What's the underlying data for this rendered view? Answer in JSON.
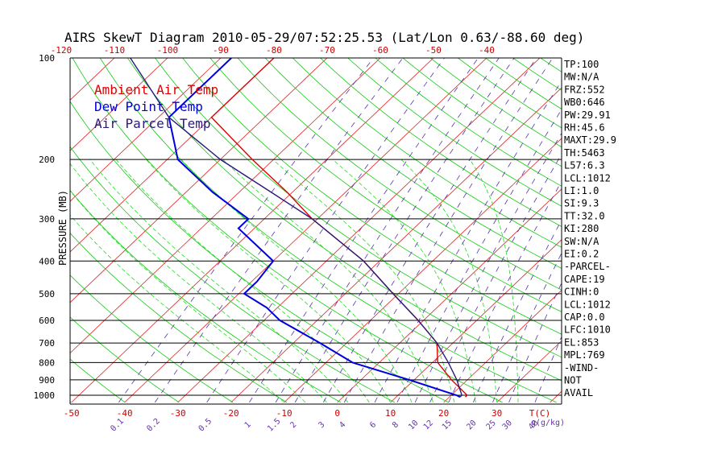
{
  "chart_data": {
    "type": "line",
    "title": "AIRS SkewT Diagram 2010-05-29/07:52:25.53 (Lat/Lon 0.63/-88.60 deg)",
    "ylabel": "PRESSURE (MB)",
    "xlabel_temp": "T(C)",
    "xlabel_mix": "q(g/kg)",
    "y_log_scale": true,
    "ylim": [
      1050,
      100
    ],
    "xlim_bottom": [
      -55,
      38
    ],
    "bottom_temp_ticks": [
      -50,
      -40,
      -30,
      -20,
      -10,
      0,
      10,
      20,
      30
    ],
    "top_temp_ticks": [
      -120,
      -110,
      -100,
      -90,
      -80,
      -70,
      -60,
      -50,
      -40
    ],
    "pressure_ticks": [
      100,
      200,
      300,
      400,
      500,
      600,
      700,
      800,
      900,
      1000
    ],
    "mixing_ratio_labels": [
      "0.1",
      "0.2",
      "0.5",
      "1",
      "1.5",
      "2",
      "3",
      "4",
      "6",
      "8",
      "10",
      "12",
      "15",
      "20",
      "25",
      "30",
      "40"
    ],
    "legend": [
      "Ambient Air Temp",
      "Dew Point Temp",
      "Air Parcel Temp"
    ],
    "series": [
      {
        "name": "Ambient Air Temp",
        "color": "#dd0000",
        "points": [
          [
            100,
            -80
          ],
          [
            150,
            -80
          ],
          [
            200,
            -64
          ],
          [
            250,
            -51
          ],
          [
            300,
            -41
          ],
          [
            400,
            -23
          ],
          [
            500,
            -11
          ],
          [
            600,
            -1
          ],
          [
            700,
            7
          ],
          [
            800,
            11
          ],
          [
            900,
            17
          ],
          [
            1000,
            23
          ],
          [
            1012,
            23
          ]
        ]
      },
      {
        "name": "Dew Point Temp",
        "color": "#0000dd",
        "points": [
          [
            100,
            -88
          ],
          [
            150,
            -88
          ],
          [
            200,
            -78
          ],
          [
            250,
            -65
          ],
          [
            300,
            -53
          ],
          [
            320,
            -53
          ],
          [
            400,
            -40
          ],
          [
            460,
            -39
          ],
          [
            500,
            -39
          ],
          [
            550,
            -32
          ],
          [
            600,
            -27
          ],
          [
            700,
            -15
          ],
          [
            800,
            -5
          ],
          [
            900,
            9
          ],
          [
            1000,
            21
          ],
          [
            1012,
            22
          ]
        ]
      },
      {
        "name": "Air Parcel Temp",
        "color": "#2a1a7a",
        "points": [
          [
            100,
            -107
          ],
          [
            150,
            -88
          ],
          [
            200,
            -70
          ],
          [
            250,
            -54
          ],
          [
            300,
            -41
          ],
          [
            400,
            -23
          ],
          [
            500,
            -11
          ],
          [
            600,
            -1
          ],
          [
            700,
            7
          ],
          [
            800,
            13
          ],
          [
            900,
            18
          ],
          [
            1000,
            22
          ],
          [
            1012,
            22
          ]
        ]
      }
    ],
    "indices": [
      "TP:100",
      "MW:N/A",
      "FRZ:552",
      "WB0:646",
      "PW:29.91",
      "RH:45.6",
      "MAXT:29.9",
      "TH:5463",
      "L57:6.3",
      "LCL:1012",
      "LI:1.0",
      "SI:9.3",
      "TT:32.0",
      "KI:280",
      "SW:N/A",
      "EI:0.2",
      "-PARCEL-",
      "CAPE:19",
      "CINH:0",
      "LCL:1012",
      "CAP:0.0",
      "LFC:1010",
      "EL:853",
      "MPL:769",
      "-WIND-",
      "NOT",
      "AVAIL"
    ],
    "colors": {
      "isotherm": "#dd2222",
      "dry_adiabat": "#11cc11",
      "moist_adiabat": "#22dd22",
      "mixing_ratio": "#5533aa",
      "isobar": "#000000",
      "temp_tick": "#cc0000",
      "mix_tick": "#6633aa",
      "title": "#000000"
    }
  }
}
